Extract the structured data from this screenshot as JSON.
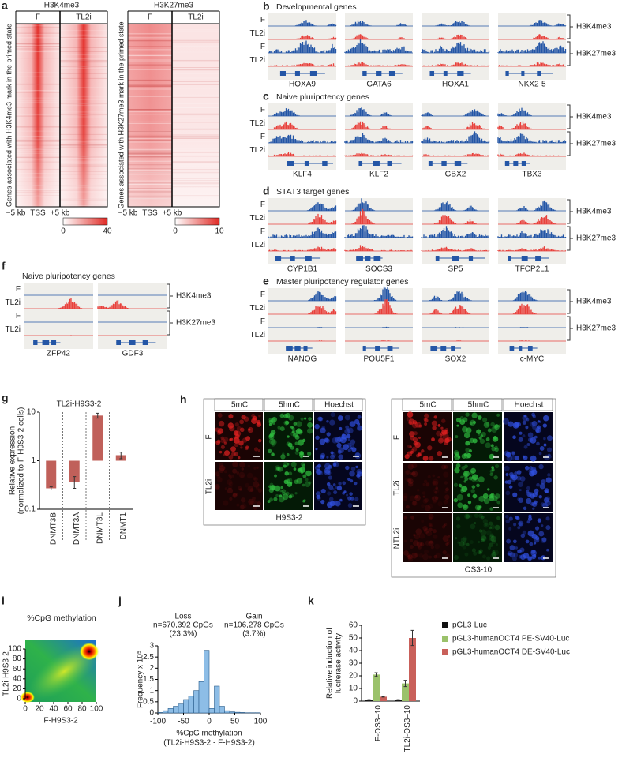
{
  "heatmaps": {
    "letter": "a",
    "panels": [
      {
        "title": "H3K4me3",
        "columns": [
          "F",
          "TL2i"
        ],
        "ylabel": "Genes associated with H3K4me3 mark in the primed state",
        "xlabels": [
          "−5 kb",
          "TSS",
          "+5 kb"
        ],
        "scale": [
          0,
          40
        ]
      },
      {
        "title": "H3K27me3",
        "columns": [
          "F",
          "TL2i"
        ],
        "ylabel": "Genes associated with H3K27me3 mark in the primed state",
        "xlabels": [
          "−5 kb",
          "TSS",
          "+5 kb"
        ],
        "scale": [
          0,
          10
        ]
      }
    ]
  },
  "tracks": [
    {
      "letter": "b",
      "title": "Developmental genes",
      "rows": [
        "F",
        "TL2i",
        "F",
        "TL2i"
      ],
      "marks": [
        "H3K4me3",
        "H3K27me3"
      ],
      "genes": [
        "HOXA9",
        "GATA6",
        "HOXA1",
        "NKX2-5"
      ]
    },
    {
      "letter": "c",
      "title": "Naive pluripotency genes",
      "rows": [
        "F",
        "TL2i",
        "F",
        "TL2i"
      ],
      "marks": [
        "H3K4me3",
        "H3K27me3"
      ],
      "genes": [
        "KLF4",
        "KLF2",
        "GBX2",
        "TBX3"
      ]
    },
    {
      "letter": "d",
      "title": "STAT3 target genes",
      "rows": [
        "F",
        "TL2i",
        "F",
        "TL2i"
      ],
      "marks": [
        "H3K4me3",
        "H3K27me3"
      ],
      "genes": [
        "CYP1B1",
        "SOCS3",
        "SP5",
        "TFCP2L1"
      ]
    },
    {
      "letter": "e",
      "title": "Master pluripotency regulator genes",
      "rows": [
        "F",
        "TL2i",
        "F",
        "TL2i"
      ],
      "marks": [
        "H3K4me3",
        "H3K27me3"
      ],
      "genes": [
        "NANOG",
        "POU5F1",
        "SOX2",
        "c-MYC"
      ]
    },
    {
      "letter": "f",
      "title": "Naive pluripotency genes",
      "rows": [
        "F",
        "TL2i",
        "F",
        "TL2i"
      ],
      "marks": [
        "H3K4me3",
        "H3K27me3"
      ],
      "genes": [
        "ZFP42",
        "GDF3"
      ]
    }
  ],
  "micrographs": {
    "letter": "h",
    "blocks": [
      {
        "columns": [
          "5mC",
          "5hmC",
          "Hoechst"
        ],
        "rows": [
          "F",
          "TL2i"
        ],
        "label": "H9S3-2"
      },
      {
        "columns": [
          "5mC",
          "5hmC",
          "Hoechst"
        ],
        "rows": [
          "F",
          "TL2i",
          "NTL2i"
        ],
        "label": "OS3-10"
      }
    ]
  },
  "chart_data": [
    {
      "letter": "g",
      "type": "bar",
      "title": "TL2i-H9S3-2",
      "y_label": [
        "Relative expression",
        "(normalized to F-H9S3-2 cells)"
      ],
      "categories": [
        "DNMT3B",
        "DNMT3A",
        "DNMT3L",
        "DNMT1"
      ],
      "values": [
        0.27,
        0.37,
        8.5,
        1.3
      ],
      "errors": [
        0.02,
        0.1,
        1.0,
        0.2
      ],
      "color": "#c0605a",
      "log_scale": true,
      "ylim": [
        0.1,
        10
      ],
      "yticks": [
        0.1,
        1,
        10
      ]
    },
    {
      "letter": "i",
      "type": "density",
      "title": "%CpG methylation",
      "x_label": "F-H9S3-2",
      "y_label": "TL2i-H9S3-2",
      "xlim": [
        0,
        100
      ],
      "ylim": [
        0,
        100
      ],
      "xticks": [
        0,
        20,
        40,
        60,
        80,
        100
      ],
      "yticks": [
        0,
        20,
        40,
        60,
        80,
        100
      ]
    },
    {
      "letter": "j",
      "type": "histogram",
      "y_label": "Frequency x 10⁵",
      "x_label": [
        "%CpG methylation",
        "(TL2i-H9S3-2 - F-H9S3-2)"
      ],
      "annotations": [
        [
          "Loss",
          "n=670,392 CpGs",
          "(23.3%)"
        ],
        [
          "Gain",
          "n=106,278 CpGs",
          "(3.7%)"
        ]
      ],
      "bins": [
        -100,
        -90,
        -80,
        -70,
        -60,
        -50,
        -40,
        -30,
        -20,
        -10,
        0,
        10,
        20,
        30,
        40,
        50,
        60,
        70,
        80,
        90,
        100
      ],
      "values": [
        0.02,
        0.1,
        0.2,
        0.3,
        0.4,
        0.6,
        0.75,
        1.0,
        1.4,
        2.8,
        0.2,
        1.2,
        0.3,
        0.1,
        0.05,
        0.03,
        0.02,
        0.01,
        0.01,
        0.01
      ],
      "color": "#8dbde6",
      "xlim": [
        -100,
        100
      ],
      "xticks": [
        -100,
        -50,
        0,
        50,
        100
      ],
      "ylim": [
        0,
        3
      ],
      "yticks": [
        0,
        0.5,
        1,
        1.5,
        2,
        2.5,
        3
      ]
    },
    {
      "letter": "k",
      "type": "grouped_bar",
      "y_label": [
        "Relative induction of",
        "luciferase activity"
      ],
      "categories": [
        "F-OS3–10",
        "TL2i-OS3–10"
      ],
      "series": [
        {
          "name": "pGL3-Luc",
          "color": "#111111",
          "values": [
            1,
            1
          ],
          "errors": [
            0.2,
            0.2
          ]
        },
        {
          "name": "pGL3-humanOCT4 PE-SV40-Luc",
          "color": "#9bc26b",
          "values": [
            21,
            14
          ],
          "errors": [
            1.5,
            2.5
          ]
        },
        {
          "name": "pGL3-humanOCT4 DE-SV40-Luc",
          "color": "#c9605a",
          "values": [
            3.5,
            50
          ],
          "errors": [
            0.3,
            6
          ]
        }
      ],
      "ylim": [
        0,
        60
      ],
      "yticks": [
        0,
        10,
        20,
        30,
        40,
        50,
        60
      ]
    }
  ]
}
